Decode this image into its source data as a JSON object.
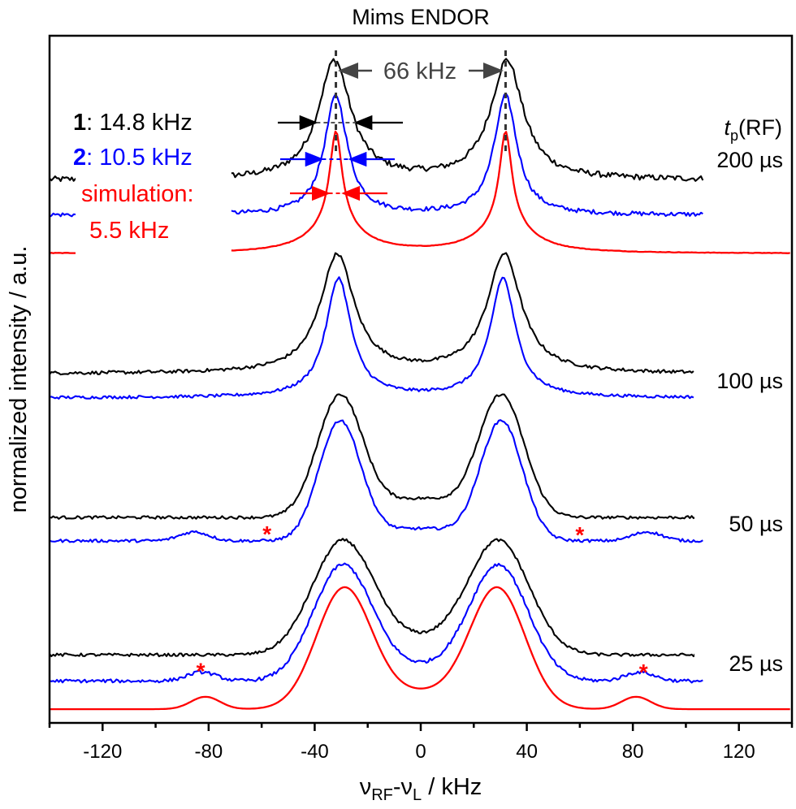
{
  "chart_data": {
    "type": "line",
    "title": "Mims ENDOR",
    "xlabel": "νRF-νL / kHz",
    "xlabel_parts": {
      "nu1": "ν",
      "sub1": "RF",
      "dash": "-",
      "nu2": "ν",
      "sub2": "L",
      "unit": " / kHz"
    },
    "ylabel": "normalized intensity / a.u.",
    "xlim": [
      -140,
      140
    ],
    "ylim": [
      0,
      100
    ],
    "x_ticks": [
      -120,
      -80,
      -40,
      0,
      40,
      80,
      120
    ],
    "x_minor_ticks": [
      -140,
      -100,
      -60,
      -20,
      20,
      60,
      100,
      140
    ],
    "y_ticks_visible": false,
    "grid": false,
    "colors": {
      "sample1": "#000000",
      "sample2": "#0000ff",
      "simulation": "#ff0000",
      "annotation": "#555555"
    },
    "annotations": {
      "splitting": {
        "text": "66 kHz",
        "peak_left_x": -32,
        "peak_right_x": 32
      },
      "legend": [
        {
          "id": "1",
          "text": ": 14.8 kHz",
          "color": "#000000"
        },
        {
          "id": "2",
          "text": ": 10.5 kHz",
          "color": "#0000ff"
        },
        {
          "text": "simulation:",
          "color": "#ff0000"
        },
        {
          "text": "5.5 kHz",
          "color": "#ff0000"
        }
      ],
      "linewidth_arrows": [
        {
          "series": "sample1",
          "fwhm_khz": 14.8
        },
        {
          "series": "sample2",
          "fwhm_khz": 10.5
        },
        {
          "series": "simulation",
          "fwhm_khz": 5.5
        }
      ],
      "tp_header": {
        "t": "t",
        "sub": "p",
        "rest": "(RF)"
      },
      "asterisks": [
        {
          "x": -58,
          "y": 28.0
        },
        {
          "x": 60,
          "y": 27.9
        },
        {
          "x": -83,
          "y": 8.1
        },
        {
          "x": 84,
          "y": 7.9
        }
      ],
      "asterisk_symbol": "*"
    },
    "groups": [
      {
        "label": "200 µs",
        "series": [
          {
            "name": "1",
            "color": "#000000",
            "x_range": [
              -140,
              107
            ],
            "gap": [
              -128,
              -72
            ],
            "baseline": 79.0,
            "peak": 96.5,
            "center": 32.5,
            "width": 14.8,
            "shape": "lorentz",
            "mid_dip": null,
            "noise": 0.6
          },
          {
            "name": "2",
            "color": "#0000ff",
            "x_range": [
              -140,
              107
            ],
            "gap": [
              -128,
              -72
            ],
            "baseline": 73.9,
            "peak": 91.3,
            "center": 32.0,
            "width": 10.5,
            "shape": "lorentz",
            "mid_dip": null,
            "noise": 0.45
          },
          {
            "name": "simulation",
            "color": "#ff0000",
            "x_range": [
              -140,
              140
            ],
            "gap": [
              -128,
              -72
            ],
            "baseline": 68.3,
            "peak": 86.1,
            "center": 32.0,
            "width": 5.5,
            "shape": "sim_narrow",
            "mid_dip": null,
            "noise": 0.05
          }
        ]
      },
      {
        "label": "100 µs",
        "series": [
          {
            "name": "1",
            "color": "#000000",
            "x_range": [
              -140,
              103
            ],
            "baseline": 50.8,
            "peak": 68.3,
            "center": 31.5,
            "width": 15.5,
            "shape": "lorentz",
            "mid_dip": null,
            "noise": 0.35
          },
          {
            "name": "2",
            "color": "#0000ff",
            "x_range": [
              -140,
              103
            ],
            "baseline": 47.3,
            "peak": 64.8,
            "center": 31.0,
            "width": 11.5,
            "shape": "lorentz",
            "mid_dip": null,
            "noise": 0.3
          }
        ]
      },
      {
        "label": "50 µs",
        "series": [
          {
            "name": "1",
            "color": "#000000",
            "x_range": [
              -140,
              107
            ],
            "baseline": 29.9,
            "peak": 47.3,
            "center": 30.5,
            "width": 20.0,
            "shape": "gauss",
            "mid_dip": 32.7,
            "noise": 0.3
          },
          {
            "name": "2",
            "color": "#0000ff",
            "x_range": [
              -140,
              107
            ],
            "baseline": 26.5,
            "peak": 43.7,
            "center": 30.5,
            "width": 18.5,
            "shape": "gauss",
            "mid_dip": 28.3,
            "side_bump": 1.3,
            "noise": 0.3
          }
        ]
      },
      {
        "label": "25 µs",
        "series": [
          {
            "name": "1",
            "color": "#000000",
            "x_range": [
              -140,
              107
            ],
            "baseline": 9.9,
            "peak": 26.2,
            "center": 29.5,
            "width": 27.0,
            "shape": "gauss",
            "mid_dip": 13.2,
            "noise": 0.3
          },
          {
            "name": "2",
            "color": "#0000ff",
            "x_range": [
              -140,
              107
            ],
            "baseline": 6.1,
            "peak": 22.7,
            "center": 29.5,
            "width": 26.0,
            "shape": "gauss",
            "mid_dip": 8.9,
            "side_bump": 1.3,
            "noise": 0.35
          },
          {
            "name": "simulation",
            "color": "#ff0000",
            "x_range": [
              -140,
              140
            ],
            "baseline": 2.0,
            "peak": 19.3,
            "center": 29.0,
            "width": 24.5,
            "shape": "gauss",
            "mid_dip": 5.0,
            "side_bump": 1.8,
            "noise": 0.0
          }
        ]
      }
    ]
  }
}
